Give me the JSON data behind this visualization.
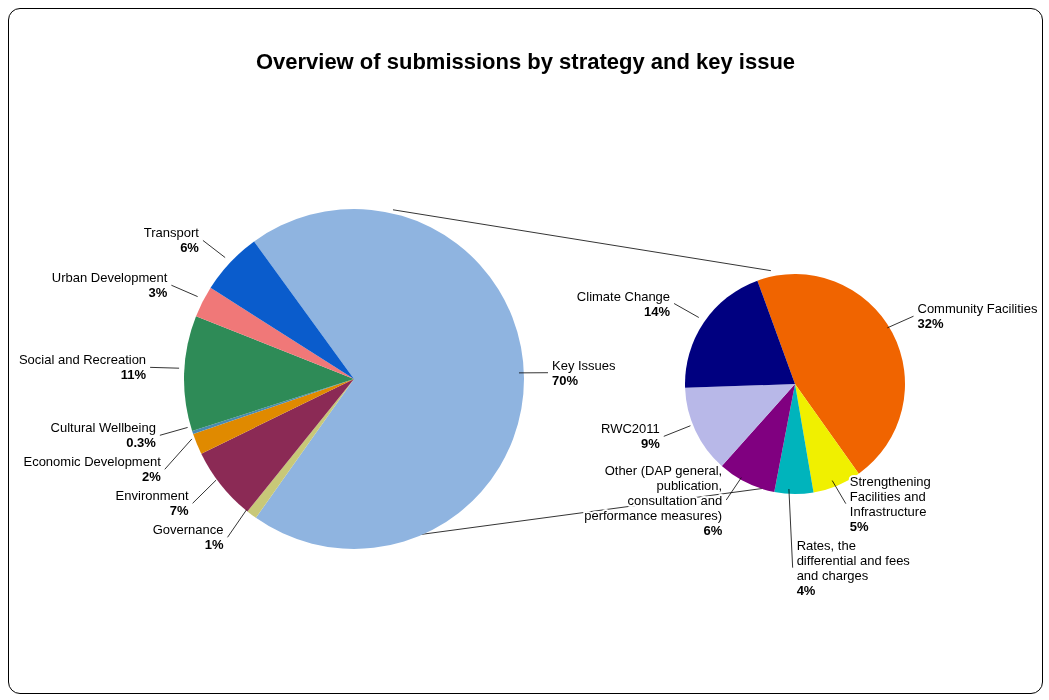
{
  "chart_data": [
    {
      "type": "pie",
      "title": "Overview of submissions by strategy and key issue",
      "categories": [
        "Key Issues",
        "Governance",
        "Environment",
        "Economic Development",
        "Cultural Wellbeing",
        "Social and Recreation",
        "Urban Development",
        "Transport"
      ],
      "values": [
        70,
        1,
        7,
        2,
        0.3,
        11,
        3,
        6
      ],
      "value_labels": [
        "70%",
        "1%",
        "7%",
        "2%",
        "0.3%",
        "11%",
        "3%",
        "6%"
      ],
      "colors": [
        "#8fb4e0",
        "#c8c878",
        "#8b2a55",
        "#e08a00",
        "#4a8ab0",
        "#2e8b57",
        "#f07878",
        "#0a5ccc"
      ]
    },
    {
      "type": "pie",
      "categories": [
        "Community Facilities",
        "Strengthening Facilities and Infrastructure",
        "Rates, the differential and fees and charges",
        "Other (DAP general, publication, consultation and performance measures)",
        "RWC2011",
        "Climate Change"
      ],
      "values": [
        32,
        5,
        4,
        6,
        9,
        14
      ],
      "value_labels": [
        "32%",
        "5%",
        "4%",
        "6%",
        "9%",
        "14%"
      ],
      "colors": [
        "#f06400",
        "#f0f000",
        "#00b4bc",
        "#800080",
        "#b8b8e8",
        "#000080"
      ]
    }
  ]
}
